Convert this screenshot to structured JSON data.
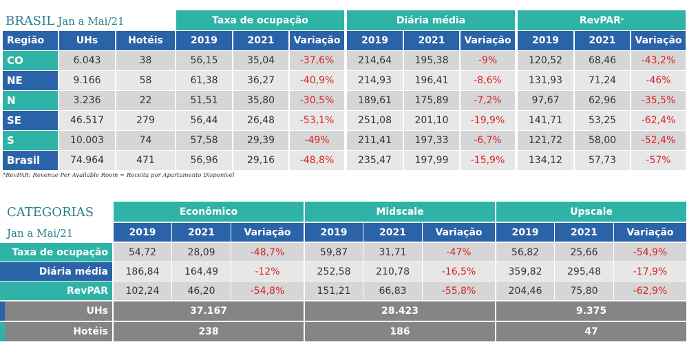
{
  "t1": {
    "title": "BRASIL",
    "period": "Jan a Mai/21",
    "groups": [
      "Taxa de ocupação",
      "Diária média",
      "RevPAR"
    ],
    "revpar_mark": "*",
    "headers": [
      "Região",
      "UHs",
      "Hotéis",
      "2019",
      "2021",
      "Variação",
      "2019",
      "2021",
      "Variação",
      "2019",
      "2021",
      "Variação"
    ],
    "rows": [
      [
        "CO",
        "6.043",
        "38",
        "56,15",
        "35,04",
        "-37,6%",
        "214,64",
        "195,38",
        "-9%",
        "120,52",
        "68,46",
        "-43,2%"
      ],
      [
        "NE",
        "9.166",
        "58",
        "61,38",
        "36,27",
        "-40,9%",
        "214,93",
        "196,41",
        "-8,6%",
        "131,93",
        "71,24",
        "-46%"
      ],
      [
        "N",
        "3.236",
        "22",
        "51,51",
        "35,80",
        "-30,5%",
        "189,61",
        "175,89",
        "-7,2%",
        "97,67",
        "62,96",
        "-35,5%"
      ],
      [
        "SE",
        "46.517",
        "279",
        "56,44",
        "26,48",
        "-53,1%",
        "251,08",
        "201,10",
        "-19,9%",
        "141,71",
        "53,25",
        "-62,4%"
      ],
      [
        "S",
        "10.003",
        "74",
        "57,58",
        "29,39",
        "-49%",
        "211,41",
        "197,33",
        "-6,7%",
        "121,72",
        "58,00",
        "-52,4%"
      ],
      [
        "Brasil",
        "74.964",
        "471",
        "56,96",
        "29,16",
        "-48,8%",
        "235,47",
        "197,99",
        "-15,9%",
        "134,12",
        "57,73",
        "-57%"
      ]
    ],
    "footnote": "*RevPAR: Revenue Per Available Room = Receita por Apartamento Disponível"
  },
  "t2": {
    "title": "CATEGORIAS",
    "period": "Jan a Mai/21",
    "groups": [
      "Econômico",
      "Midscale",
      "Upscale"
    ],
    "headers": [
      "2019",
      "2021",
      "Variação",
      "2019",
      "2021",
      "Variação",
      "2019",
      "2021",
      "Variação"
    ],
    "rows": [
      {
        "label": "Taxa de ocupação",
        "values": [
          "54,72",
          "28,09",
          "-48,7%",
          "59,87",
          "31,71",
          "-47%",
          "56,82",
          "25,66",
          "-54,9%"
        ]
      },
      {
        "label": "Diária média",
        "values": [
          "186,84",
          "164,49",
          "-12%",
          "252,58",
          "210,78",
          "-16,5%",
          "359,82",
          "295,48",
          "-17,9%"
        ]
      },
      {
        "label": "RevPAR",
        "values": [
          "102,24",
          "46,20",
          "-54,8%",
          "151,21",
          "66,83",
          "-55,8%",
          "204,46",
          "75,80",
          "-62,9%"
        ]
      }
    ],
    "totals": [
      {
        "label": "UHs",
        "values": [
          "37.167",
          "28.423",
          "9.375"
        ]
      },
      {
        "label": "Hotéis",
        "values": [
          "238",
          "186",
          "47"
        ]
      }
    ]
  }
}
